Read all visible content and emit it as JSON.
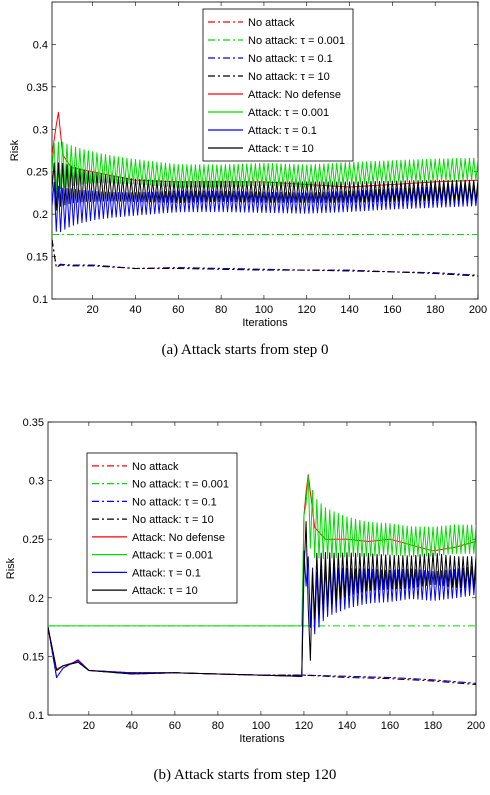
{
  "captions": [
    "(a) Attack starts from step 0",
    "(b) Attack starts from step 120"
  ],
  "chart_data": [
    {
      "type": "line",
      "xlabel": "Iterations",
      "ylabel": "Risk",
      "xlim": [
        1,
        200
      ],
      "ylim": [
        0.1,
        0.45
      ],
      "xticks": [
        20,
        40,
        60,
        80,
        100,
        120,
        140,
        160,
        180,
        200
      ],
      "yticks": [
        0.1,
        0.15,
        0.2,
        0.25,
        0.3,
        0.35,
        0.4
      ],
      "grid": false,
      "legend_position": "top-center",
      "attack_start": 0,
      "series": [
        {
          "name": "No attack",
          "color": "#ff0000",
          "style": "dashdot",
          "x": [
            1,
            3,
            5,
            10,
            20,
            40,
            60,
            80,
            100,
            120,
            140,
            160,
            180,
            200
          ],
          "y": [
            0.17,
            0.138,
            0.141,
            0.14,
            0.14,
            0.136,
            0.137,
            0.136,
            0.135,
            0.134,
            0.134,
            0.132,
            0.131,
            0.128
          ]
        },
        {
          "name": "No attack: τ = 0.001",
          "color": "#00dd00",
          "style": "dashdot",
          "x": [
            1,
            200
          ],
          "y": [
            0.176,
            0.176
          ]
        },
        {
          "name": "No attack: τ = 0.1",
          "color": "#0000ff",
          "style": "dashdot",
          "x": [
            1,
            3,
            5,
            10,
            20,
            40,
            60,
            80,
            100,
            120,
            140,
            160,
            180,
            200
          ],
          "y": [
            0.17,
            0.138,
            0.141,
            0.14,
            0.14,
            0.136,
            0.137,
            0.136,
            0.135,
            0.134,
            0.134,
            0.132,
            0.131,
            0.128
          ]
        },
        {
          "name": "No attack: τ = 10",
          "color": "#000000",
          "style": "dashdot",
          "x": [
            1,
            3,
            5,
            10,
            20,
            40,
            60,
            80,
            100,
            120,
            140,
            160,
            180,
            200
          ],
          "y": [
            0.17,
            0.137,
            0.14,
            0.139,
            0.139,
            0.136,
            0.136,
            0.135,
            0.134,
            0.134,
            0.133,
            0.132,
            0.13,
            0.127
          ]
        },
        {
          "name": "Attack: No defense",
          "color": "#ff0000",
          "style": "solid",
          "x": [
            1,
            3,
            4,
            6,
            10,
            20,
            40,
            60,
            80,
            100,
            120,
            140,
            160,
            180,
            200
          ],
          "y": [
            0.27,
            0.305,
            0.32,
            0.27,
            0.255,
            0.25,
            0.24,
            0.238,
            0.238,
            0.238,
            0.235,
            0.232,
            0.235,
            0.238,
            0.24
          ]
        },
        {
          "name": "Attack: τ = 0.001",
          "color": "#00dd00",
          "style": "solid",
          "osc": 0.013,
          "x": [
            1,
            5,
            10,
            20,
            40,
            60,
            80,
            100,
            120,
            140,
            160,
            180,
            200
          ],
          "y": [
            0.25,
            0.258,
            0.257,
            0.255,
            0.25,
            0.245,
            0.245,
            0.247,
            0.245,
            0.248,
            0.25,
            0.252,
            0.253
          ]
        },
        {
          "name": "Attack: τ = 0.1",
          "color": "#0000ff",
          "style": "solid",
          "osc": 0.012,
          "x": [
            1,
            5,
            10,
            20,
            40,
            60,
            80,
            100,
            120,
            140,
            160,
            180,
            200
          ],
          "y": [
            0.21,
            0.205,
            0.208,
            0.21,
            0.212,
            0.215,
            0.215,
            0.214,
            0.213,
            0.215,
            0.218,
            0.22,
            0.222
          ]
        },
        {
          "name": "Attack: τ = 10",
          "color": "#000000",
          "style": "solid",
          "osc": 0.012,
          "x": [
            1,
            5,
            10,
            20,
            40,
            60,
            80,
            100,
            120,
            140,
            160,
            180,
            200
          ],
          "y": [
            0.23,
            0.235,
            0.235,
            0.232,
            0.228,
            0.226,
            0.227,
            0.226,
            0.226,
            0.226,
            0.227,
            0.228,
            0.228
          ]
        }
      ]
    },
    {
      "type": "line",
      "xlabel": "Iterations",
      "ylabel": "Risk",
      "xlim": [
        1,
        200
      ],
      "ylim": [
        0.1,
        0.35
      ],
      "xticks": [
        20,
        40,
        60,
        80,
        100,
        120,
        140,
        160,
        180,
        200
      ],
      "yticks": [
        0.1,
        0.15,
        0.2,
        0.25,
        0.3,
        0.35
      ],
      "grid": false,
      "legend_position": "top-left",
      "attack_start": 120,
      "series": [
        {
          "name": "No attack",
          "color": "#ff0000",
          "style": "dashdot",
          "x": [
            1,
            5,
            8,
            15,
            20,
            40,
            60,
            80,
            100,
            120,
            140,
            160,
            180,
            200
          ],
          "y": [
            0.175,
            0.139,
            0.142,
            0.146,
            0.138,
            0.136,
            0.136,
            0.135,
            0.134,
            0.134,
            0.133,
            0.132,
            0.13,
            0.127
          ]
        },
        {
          "name": "No attack: τ = 0.001",
          "color": "#00dd00",
          "style": "dashdot",
          "x": [
            1,
            200
          ],
          "y": [
            0.176,
            0.176
          ]
        },
        {
          "name": "No attack: τ = 0.1",
          "color": "#0000ff",
          "style": "dashdot",
          "x": [
            1,
            5,
            8,
            15,
            20,
            40,
            60,
            80,
            100,
            120,
            140,
            160,
            180,
            200
          ],
          "y": [
            0.175,
            0.132,
            0.14,
            0.147,
            0.138,
            0.136,
            0.136,
            0.135,
            0.134,
            0.134,
            0.133,
            0.132,
            0.13,
            0.127
          ]
        },
        {
          "name": "No attack: τ = 10",
          "color": "#000000",
          "style": "dashdot",
          "x": [
            1,
            5,
            8,
            15,
            20,
            40,
            60,
            80,
            100,
            120,
            140,
            160,
            180,
            200
          ],
          "y": [
            0.175,
            0.138,
            0.142,
            0.145,
            0.138,
            0.135,
            0.136,
            0.135,
            0.134,
            0.134,
            0.132,
            0.131,
            0.129,
            0.126
          ]
        },
        {
          "name": "Attack: No defense",
          "color": "#ff0000",
          "style": "solid",
          "x": [
            1,
            5,
            8,
            15,
            20,
            40,
            60,
            80,
            100,
            119,
            120,
            121,
            122,
            125,
            130,
            140,
            150,
            160,
            170,
            180,
            190,
            200
          ],
          "y": [
            0.175,
            0.139,
            0.142,
            0.146,
            0.138,
            0.136,
            0.136,
            0.135,
            0.134,
            0.133,
            0.27,
            0.29,
            0.305,
            0.26,
            0.25,
            0.25,
            0.248,
            0.25,
            0.245,
            0.24,
            0.243,
            0.248
          ]
        },
        {
          "name": "Attack: τ = 0.001",
          "color": "#00dd00",
          "style": "solid",
          "osc": 0.012,
          "x": [
            1,
            119,
            120,
            121,
            125,
            130,
            140,
            150,
            160,
            170,
            180,
            190,
            200
          ],
          "y": [
            0.176,
            0.176,
            0.27,
            0.28,
            0.26,
            0.255,
            0.252,
            0.25,
            0.25,
            0.248,
            0.248,
            0.25,
            0.25
          ]
        },
        {
          "name": "Attack: τ = 0.1",
          "color": "#0000ff",
          "style": "solid",
          "osc": 0.012,
          "x": [
            1,
            5,
            8,
            15,
            20,
            40,
            60,
            80,
            100,
            119,
            120,
            121,
            125,
            130,
            140,
            150,
            160,
            170,
            180,
            190,
            200
          ],
          "y": [
            0.175,
            0.132,
            0.14,
            0.147,
            0.138,
            0.136,
            0.136,
            0.135,
            0.134,
            0.133,
            0.24,
            0.21,
            0.195,
            0.205,
            0.208,
            0.21,
            0.21,
            0.212,
            0.21,
            0.212,
            0.215
          ]
        },
        {
          "name": "Attack: τ = 10",
          "color": "#000000",
          "style": "solid",
          "osc": 0.013,
          "x": [
            1,
            5,
            8,
            15,
            20,
            40,
            60,
            80,
            100,
            119,
            120,
            121,
            122,
            125,
            130,
            140,
            150,
            160,
            170,
            180,
            190,
            200
          ],
          "y": [
            0.175,
            0.138,
            0.142,
            0.145,
            0.138,
            0.135,
            0.136,
            0.135,
            0.134,
            0.133,
            0.22,
            0.265,
            0.16,
            0.21,
            0.215,
            0.22,
            0.222,
            0.222,
            0.222,
            0.225,
            0.222,
            0.222
          ]
        }
      ]
    }
  ]
}
